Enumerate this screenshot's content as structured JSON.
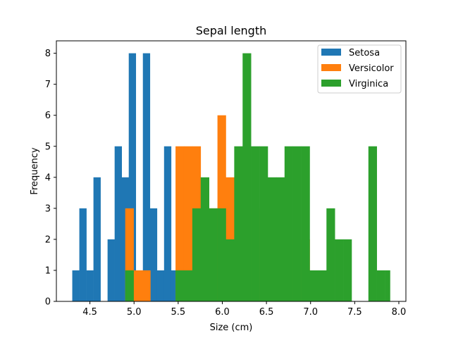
{
  "chart_data": {
    "type": "bar",
    "title": "Sepal length",
    "xlabel": "Size (cm)",
    "ylabel": "Frequency",
    "xlim": [
      4.12,
      8.08
    ],
    "ylim": [
      0,
      8.4
    ],
    "xticks": [
      4.5,
      5.0,
      5.5,
      6.0,
      6.5,
      7.0,
      7.5,
      8.0
    ],
    "xtick_labels": [
      "4.5",
      "5.0",
      "5.5",
      "6.0",
      "6.5",
      "7.0",
      "7.5",
      "8.0"
    ],
    "yticks": [
      0,
      1,
      2,
      3,
      4,
      5,
      6,
      7,
      8
    ],
    "ytick_labels": [
      "0",
      "1",
      "2",
      "3",
      "4",
      "5",
      "6",
      "7",
      "8"
    ],
    "grid": false,
    "legend_position": "top-right",
    "series": [
      {
        "name": "Setosa",
        "color": "#1f77b4",
        "bins": [
          [
            4.3,
            4.38,
            1
          ],
          [
            4.38,
            4.46,
            3
          ],
          [
            4.46,
            4.54,
            1
          ],
          [
            4.54,
            4.62,
            4
          ],
          [
            4.62,
            4.7,
            0
          ],
          [
            4.7,
            4.78,
            2
          ],
          [
            4.78,
            4.86,
            5
          ],
          [
            4.86,
            4.94,
            4
          ],
          [
            4.94,
            5.02,
            8
          ],
          [
            5.02,
            5.1,
            1
          ],
          [
            5.1,
            5.18,
            8
          ],
          [
            5.18,
            5.26,
            3
          ],
          [
            5.26,
            5.34,
            1
          ],
          [
            5.34,
            5.42,
            5
          ],
          [
            5.42,
            5.5,
            1
          ],
          [
            5.5,
            5.58,
            0
          ],
          [
            5.58,
            5.66,
            0
          ],
          [
            5.66,
            5.74,
            2
          ],
          [
            5.74,
            5.82,
            1
          ]
        ]
      },
      {
        "name": "Versicolor",
        "color": "#ff7f0e",
        "bins": [
          [
            4.9,
            4.995,
            3
          ],
          [
            4.995,
            5.09,
            1
          ],
          [
            5.09,
            5.185,
            1
          ],
          [
            5.185,
            5.28,
            0
          ],
          [
            5.28,
            5.375,
            0
          ],
          [
            5.375,
            5.47,
            0
          ],
          [
            5.47,
            5.565,
            5
          ],
          [
            5.565,
            5.66,
            5
          ],
          [
            5.66,
            5.755,
            5
          ],
          [
            5.755,
            5.85,
            3
          ],
          [
            5.85,
            5.945,
            3
          ],
          [
            5.945,
            6.04,
            6
          ],
          [
            6.04,
            6.135,
            4
          ],
          [
            6.135,
            6.23,
            4
          ],
          [
            6.23,
            6.325,
            2
          ],
          [
            6.325,
            6.42,
            3
          ],
          [
            6.42,
            6.515,
            3
          ],
          [
            6.515,
            6.61,
            2
          ],
          [
            6.61,
            6.705,
            2
          ],
          [
            6.705,
            6.8,
            2
          ],
          [
            6.8,
            6.895,
            1
          ],
          [
            6.895,
            6.99,
            2
          ]
        ]
      },
      {
        "name": "Virginica",
        "color": "#2ca02c",
        "bins": [
          [
            4.9,
            4.995,
            1
          ],
          [
            4.995,
            5.09,
            0
          ],
          [
            5.09,
            5.185,
            0
          ],
          [
            5.185,
            5.28,
            0
          ],
          [
            5.28,
            5.375,
            0
          ],
          [
            5.375,
            5.47,
            0
          ],
          [
            5.47,
            5.565,
            1
          ],
          [
            5.565,
            5.66,
            1
          ],
          [
            5.66,
            5.755,
            3
          ],
          [
            5.755,
            5.85,
            4
          ],
          [
            5.85,
            5.945,
            3
          ],
          [
            5.945,
            6.04,
            3
          ],
          [
            6.04,
            6.135,
            2
          ],
          [
            6.135,
            6.23,
            5
          ],
          [
            6.23,
            6.325,
            8
          ],
          [
            6.325,
            6.42,
            5
          ],
          [
            6.42,
            6.515,
            5
          ],
          [
            6.515,
            6.61,
            4
          ],
          [
            6.61,
            6.705,
            4
          ],
          [
            6.705,
            6.8,
            5
          ],
          [
            6.8,
            6.895,
            5
          ],
          [
            6.895,
            6.99,
            5
          ],
          [
            6.99,
            7.085,
            1
          ],
          [
            7.085,
            7.18,
            1
          ],
          [
            7.18,
            7.275,
            3
          ],
          [
            7.275,
            7.37,
            2
          ],
          [
            7.37,
            7.465,
            2
          ],
          [
            7.465,
            7.56,
            0
          ],
          [
            7.56,
            7.655,
            0
          ],
          [
            7.655,
            7.75,
            5
          ],
          [
            7.75,
            7.845,
            1
          ],
          [
            7.845,
            7.9,
            1
          ]
        ]
      }
    ]
  }
}
